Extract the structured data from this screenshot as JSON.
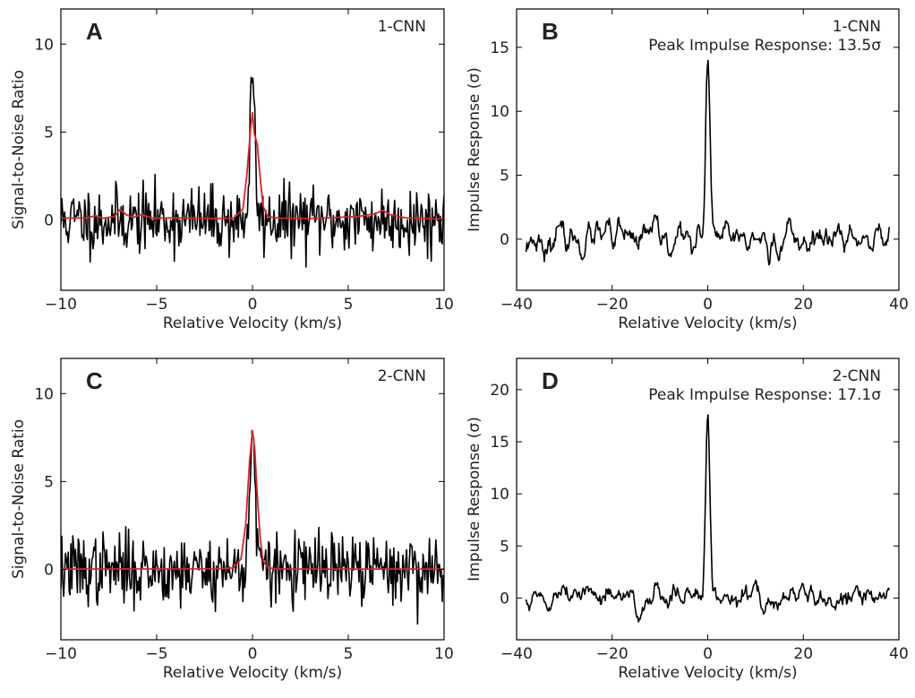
{
  "colors": {
    "signal": "#000000",
    "fit": "#d62728",
    "axis": "#000000"
  },
  "chart_data": [
    {
      "panel": "A",
      "type": "line",
      "tag": "1-CNN",
      "subtitle": "",
      "xlabel": "Relative Velocity (km/s)",
      "ylabel": "Signal-to-Noise Ratio",
      "xlim": [
        -10,
        10
      ],
      "ylim": [
        -4,
        12
      ],
      "xticks": [
        -10,
        -5,
        0,
        5,
        10
      ],
      "yticks": [
        0,
        5,
        10
      ],
      "xtick_labels": [
        "−10",
        "−5",
        "0",
        "5",
        "10"
      ],
      "ytick_labels": [
        "0",
        "5",
        "10"
      ],
      "series": [
        {
          "role": "observed",
          "color": "#000000",
          "generator": {
            "x_start": -10,
            "x_end": 10,
            "n": 420,
            "noise": 0.95,
            "seed": 11,
            "peak": 7.8,
            "center": 0.0,
            "width": 0.13
          }
        },
        {
          "role": "model fit",
          "color": "#d62728",
          "x": [
            -10,
            -8.6,
            -8.2,
            -7.8,
            -7.2,
            -6.9,
            -6.6,
            -6.2,
            -5.8,
            -5.2,
            -4,
            -2,
            -1,
            -0.5,
            -0.3,
            -0.1,
            0,
            0.1,
            0.25,
            0.4,
            0.55,
            0.8,
            1.5,
            3,
            5.5,
            6.4,
            6.8,
            7.2,
            8,
            9,
            10
          ],
          "y": [
            0.1,
            0.12,
            0.25,
            0.1,
            0.2,
            0.6,
            0.3,
            0.15,
            0.3,
            0.1,
            0.12,
            0.08,
            0.1,
            0.6,
            2.5,
            5.2,
            6.1,
            4.9,
            4.3,
            2.4,
            0.8,
            0.18,
            0.1,
            0.08,
            0.2,
            0.35,
            0.55,
            0.3,
            0.12,
            0.08,
            0.05
          ]
        }
      ]
    },
    {
      "panel": "B",
      "type": "line",
      "tag": "1-CNN",
      "subtitle": "Peak Impulse Response: 13.5σ",
      "xlabel": "Relative Velocity (km/s)",
      "ylabel": "Impulse Response (σ)",
      "xlim": [
        -40,
        40
      ],
      "ylim": [
        -4,
        18
      ],
      "xticks": [
        -40,
        -20,
        0,
        20,
        40
      ],
      "yticks": [
        0,
        5,
        10,
        15
      ],
      "xtick_labels": [
        "−40",
        "−20",
        "0",
        "20",
        "40"
      ],
      "ytick_labels": [
        "0",
        "5",
        "10",
        "15"
      ],
      "series": [
        {
          "role": "impulse response",
          "color": "#000000",
          "generator": {
            "x_start": -38,
            "x_end": 38,
            "n": 460,
            "noise": 0.85,
            "seed": 23,
            "smooth": 3,
            "peak": 13.5,
            "center": 0.0,
            "width": 0.45
          }
        }
      ]
    },
    {
      "panel": "C",
      "type": "line",
      "tag": "2-CNN",
      "subtitle": "",
      "xlabel": "Relative Velocity (km/s)",
      "ylabel": "Signal-to-Noise Ratio",
      "xlim": [
        -10,
        10
      ],
      "ylim": [
        -4,
        12
      ],
      "xticks": [
        -10,
        -5,
        0,
        5,
        10
      ],
      "yticks": [
        0,
        5,
        10
      ],
      "xtick_labels": [
        "−10",
        "−5",
        "0",
        "5",
        "10"
      ],
      "ytick_labels": [
        "0",
        "5",
        "10"
      ],
      "series": [
        {
          "role": "observed",
          "color": "#000000",
          "generator": {
            "x_start": -10,
            "x_end": 10,
            "n": 420,
            "noise": 1.0,
            "seed": 37,
            "peak": 7.9,
            "center": 0.0,
            "width": 0.14
          }
        },
        {
          "role": "model fit",
          "color": "#d62728",
          "x": [
            -10,
            -2,
            -1,
            -0.6,
            -0.35,
            -0.15,
            0,
            0.12,
            0.25,
            0.4,
            0.55,
            0.8,
            1.2,
            2,
            10
          ],
          "y": [
            0.02,
            0.03,
            0.08,
            0.6,
            2.6,
            6.2,
            7.9,
            6.8,
            4.2,
            1.8,
            0.5,
            0.1,
            0.03,
            0.02,
            0.02
          ]
        }
      ]
    },
    {
      "panel": "D",
      "type": "line",
      "tag": "2-CNN",
      "subtitle": "Peak Impulse Response: 17.1σ",
      "xlabel": "Relative Velocity (km/s)",
      "ylabel": "Impulse Response (σ)",
      "xlim": [
        -40,
        40
      ],
      "ylim": [
        -4,
        23
      ],
      "xticks": [
        -40,
        -20,
        0,
        20,
        40
      ],
      "yticks": [
        0,
        5,
        10,
        15,
        20
      ],
      "xtick_labels": [
        "−40",
        "−20",
        "0",
        "20",
        "40"
      ],
      "ytick_labels": [
        "0",
        "5",
        "10",
        "15",
        "20"
      ],
      "series": [
        {
          "role": "impulse response",
          "color": "#000000",
          "generator": {
            "x_start": -38,
            "x_end": 38,
            "n": 460,
            "noise": 0.9,
            "seed": 51,
            "smooth": 3,
            "peak": 17.1,
            "center": 0.0,
            "width": 0.45
          }
        }
      ]
    }
  ]
}
